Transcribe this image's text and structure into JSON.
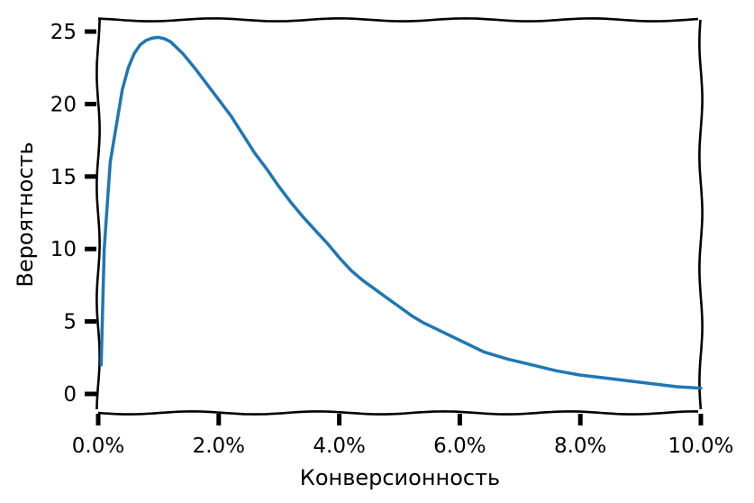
{
  "chart_data": {
    "type": "line",
    "title": "",
    "xlabel": "Конверсионность",
    "ylabel": "Вероятность",
    "xlim": [
      0,
      10
    ],
    "ylim": [
      -1,
      25.8
    ],
    "x_ticks": [
      0,
      2,
      4,
      6,
      8,
      10
    ],
    "x_tick_labels": [
      "0.0%",
      "2.0%",
      "4.0%",
      "6.0%",
      "8.0%",
      "10.0%"
    ],
    "y_ticks": [
      0,
      5,
      10,
      15,
      20,
      25
    ],
    "y_tick_labels": [
      "0",
      "5",
      "10",
      "15",
      "20",
      "25"
    ],
    "grid": false,
    "legend": "none",
    "style": "xkcd",
    "series": [
      {
        "color": "#1f77b4",
        "x": [
          0.05,
          0.1,
          0.15,
          0.2,
          0.3,
          0.4,
          0.5,
          0.6,
          0.7,
          0.8,
          0.9,
          1.0,
          1.1,
          1.2,
          1.4,
          1.6,
          1.8,
          2.0,
          2.2,
          2.4,
          2.6,
          2.8,
          3.0,
          3.2,
          3.4,
          3.6,
          3.8,
          4.0,
          4.2,
          4.4,
          4.6,
          4.8,
          5.0,
          5.2,
          5.4,
          5.6,
          5.8,
          6.0,
          6.4,
          6.8,
          7.2,
          7.6,
          8.0,
          8.4,
          8.8,
          9.2,
          9.6,
          10.0
        ],
        "y": [
          2.0,
          10.0,
          13.0,
          16.0,
          18.5,
          21.0,
          22.5,
          23.5,
          24.1,
          24.4,
          24.55,
          24.6,
          24.5,
          24.3,
          23.5,
          22.5,
          21.4,
          20.3,
          19.2,
          17.9,
          16.6,
          15.5,
          14.3,
          13.2,
          12.2,
          11.3,
          10.4,
          9.4,
          8.5,
          7.8,
          7.2,
          6.6,
          6.0,
          5.4,
          4.9,
          4.5,
          4.1,
          3.7,
          2.9,
          2.4,
          2.0,
          1.6,
          1.3,
          1.1,
          0.9,
          0.7,
          0.5,
          0.4
        ]
      }
    ]
  }
}
